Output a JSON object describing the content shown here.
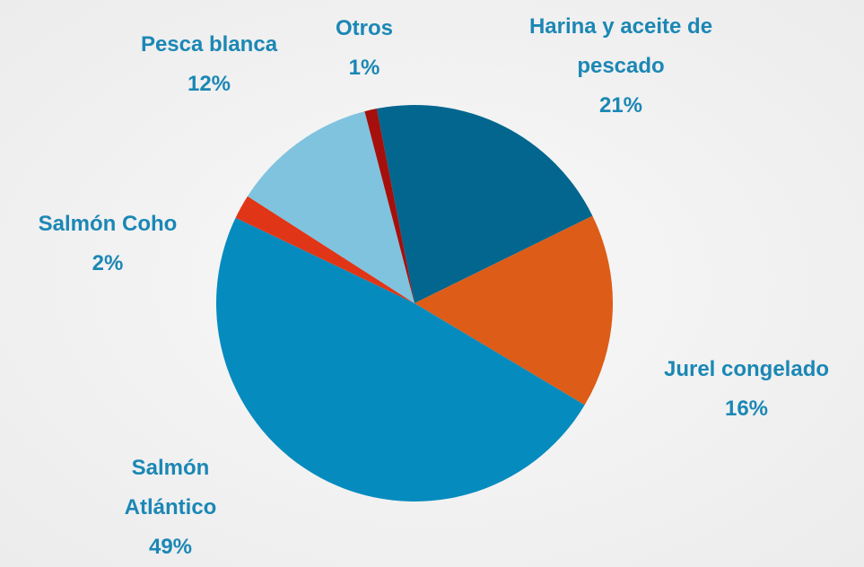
{
  "chart_data": {
    "type": "pie",
    "categories": [
      "Harina y aceite de pescado",
      "Jurel congelado",
      "Salmón Atlántico",
      "Salmón Coho",
      "Pesca blanca",
      "Otros"
    ],
    "values": [
      21,
      16,
      49,
      2,
      12,
      1
    ],
    "value_labels": [
      "21%",
      "16%",
      "49%",
      "2%",
      "12%",
      "1%"
    ],
    "colors": [
      "#02668e",
      "#dd5c17",
      "#068bbf",
      "#e03617",
      "#7fc3de",
      "#a50f0c"
    ]
  }
}
